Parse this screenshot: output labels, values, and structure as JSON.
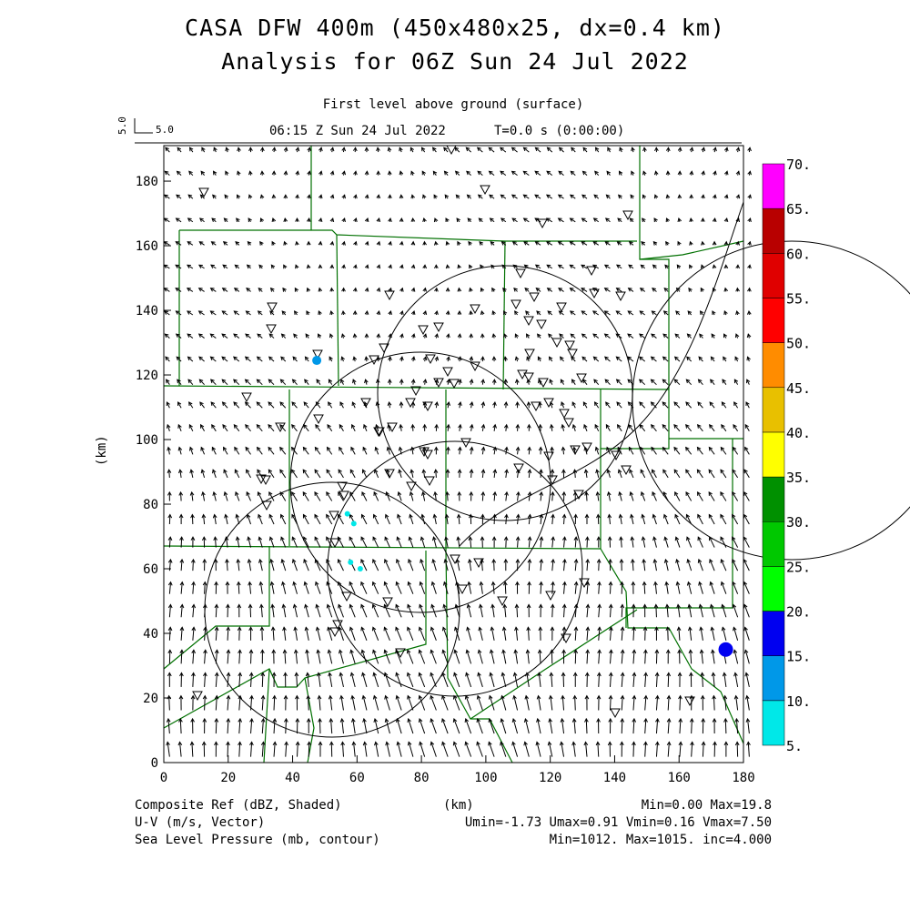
{
  "title": {
    "line1": "CASA DFW 400m (450x480x25, dx=0.4 km)",
    "line2": "Analysis for 06Z Sun 24 Jul 2022"
  },
  "subtitle": {
    "level": "First level above ground (surface)",
    "time": "06:15 Z Sun 24 Jul 2022",
    "elapsed": "T=0.0 s (0:00:00)"
  },
  "vector_key": {
    "vertical": "5.0",
    "horizontal": "5.0"
  },
  "footer": {
    "left": [
      "Composite Ref (dBZ, Shaded)",
      "U-V (m/s, Vector)",
      "Sea Level Pressure (mb, contour)"
    ],
    "xunit": "(km)",
    "right": [
      "Min=0.00 Max=19.8",
      "Umin=-1.73 Umax=0.91 Vmin=0.16 Vmax=7.50",
      "Min=1012. Max=1015. inc=4.000"
    ]
  },
  "chart_data": {
    "type": "heatmap",
    "xlabel": "(km)",
    "ylabel": "(km)",
    "xlim": [
      0,
      180
    ],
    "ylim": [
      0,
      191
    ],
    "xticks": [
      "0",
      "20",
      "40",
      "60",
      "80",
      "100",
      "120",
      "140",
      "160",
      "180"
    ],
    "yticks": [
      "0",
      "20",
      "40",
      "60",
      "80",
      "100",
      "120",
      "140",
      "160",
      "180"
    ],
    "colorbar": {
      "levels": [
        "5.",
        "10.",
        "15.",
        "20.",
        "25.",
        "30.",
        "35.",
        "40.",
        "45.",
        "50.",
        "55.",
        "60.",
        "65.",
        "70."
      ],
      "colors": [
        "#00e8e8",
        "#0098e8",
        "#0000f0",
        "#00ff00",
        "#00c800",
        "#009000",
        "#ffff00",
        "#e8c000",
        "#ff8c00",
        "#ff0000",
        "#e00000",
        "#b80000",
        "#ff00ff"
      ]
    },
    "echoes": [
      {
        "x": 47.5,
        "y": 124.5,
        "dbz": 12
      },
      {
        "x": 174.5,
        "y": 35,
        "dbz": 18
      },
      {
        "x": 59,
        "y": 74,
        "dbz": 8
      },
      {
        "x": 57,
        "y": 77,
        "dbz": 7
      },
      {
        "x": 58,
        "y": 62,
        "dbz": 6
      },
      {
        "x": 61,
        "y": 60,
        "dbz": 6
      }
    ],
    "wind": {
      "umin": -1.73,
      "umax": 0.91,
      "vmin": 0.16,
      "vmax": 7.5
    }
  }
}
